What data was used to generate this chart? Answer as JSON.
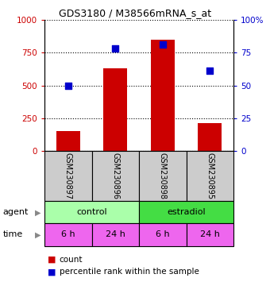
{
  "title": "GDS3180 / M38566mRNA_s_at",
  "samples": [
    "GSM230897",
    "GSM230896",
    "GSM230898",
    "GSM230895"
  ],
  "bar_values": [
    150,
    630,
    850,
    210
  ],
  "percentile_values": [
    50,
    78,
    81,
    61
  ],
  "bar_color": "#cc0000",
  "percentile_color": "#0000cc",
  "ylim_left": [
    0,
    1000
  ],
  "ylim_right": [
    0,
    100
  ],
  "yticks_left": [
    0,
    250,
    500,
    750,
    1000
  ],
  "yticks_right": [
    0,
    25,
    50,
    75,
    100
  ],
  "agent_labels": [
    "control",
    "estradiol"
  ],
  "agent_colors": [
    "#aaffaa",
    "#44dd44"
  ],
  "time_labels": [
    "6 h",
    "24 h",
    "6 h",
    "24 h"
  ],
  "time_color": "#ee66ee",
  "sample_box_color": "#cccccc",
  "legend_count_label": "count",
  "legend_pct_label": "percentile rank within the sample",
  "background_color": "#ffffff"
}
